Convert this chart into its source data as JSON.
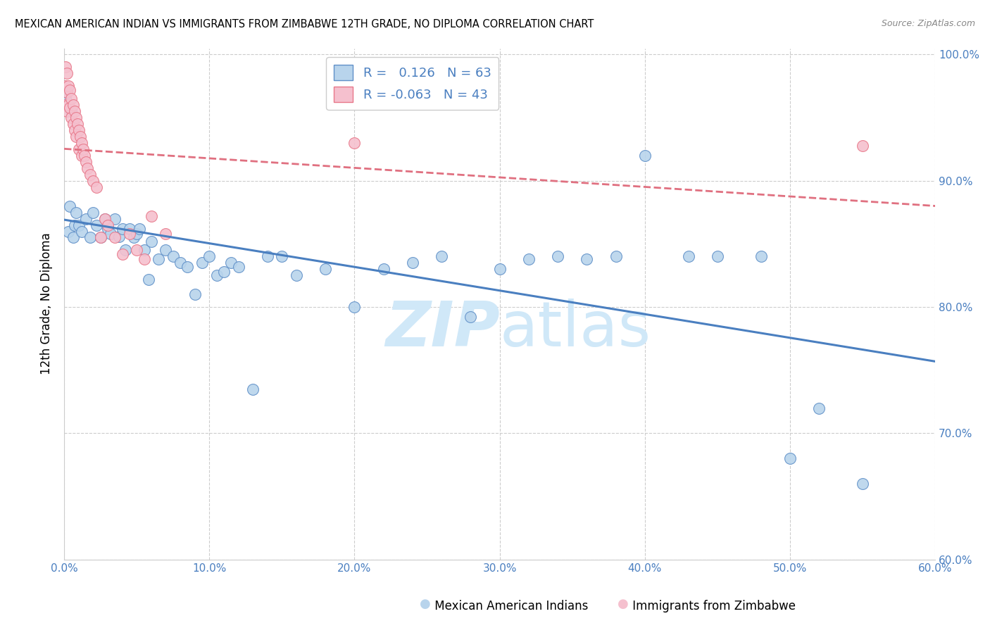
{
  "title": "MEXICAN AMERICAN INDIAN VS IMMIGRANTS FROM ZIMBABWE 12TH GRADE, NO DIPLOMA CORRELATION CHART",
  "source": "Source: ZipAtlas.com",
  "ylabel": "12th Grade, No Diploma",
  "xlim": [
    0.0,
    0.6
  ],
  "ylim": [
    0.6,
    1.005
  ],
  "xticks": [
    0.0,
    0.1,
    0.2,
    0.3,
    0.4,
    0.5,
    0.6
  ],
  "yticks": [
    0.6,
    0.7,
    0.8,
    0.9,
    1.0
  ],
  "xtick_labels": [
    "0.0%",
    "10.0%",
    "20.0%",
    "30.0%",
    "40.0%",
    "50.0%",
    "60.0%"
  ],
  "ytick_labels": [
    "60.0%",
    "70.0%",
    "80.0%",
    "90.0%",
    "100.0%"
  ],
  "legend_blue_r": "0.126",
  "legend_blue_n": "63",
  "legend_pink_r": "-0.063",
  "legend_pink_n": "43",
  "blue_fill": "#b8d4ec",
  "pink_fill": "#f5c0ce",
  "blue_edge": "#6090c8",
  "pink_edge": "#e8788a",
  "blue_line": "#4a7fc0",
  "pink_line": "#e07080",
  "watermark_color": "#d0e8f8",
  "blue_x": [
    0.001,
    0.002,
    0.003,
    0.004,
    0.005,
    0.006,
    0.007,
    0.008,
    0.01,
    0.012,
    0.015,
    0.018,
    0.02,
    0.022,
    0.025,
    0.028,
    0.03,
    0.032,
    0.035,
    0.038,
    0.04,
    0.042,
    0.045,
    0.048,
    0.05,
    0.052,
    0.055,
    0.058,
    0.06,
    0.065,
    0.07,
    0.075,
    0.08,
    0.085,
    0.09,
    0.095,
    0.1,
    0.105,
    0.11,
    0.115,
    0.12,
    0.13,
    0.14,
    0.15,
    0.16,
    0.18,
    0.2,
    0.22,
    0.24,
    0.26,
    0.28,
    0.3,
    0.32,
    0.34,
    0.36,
    0.38,
    0.4,
    0.43,
    0.45,
    0.48,
    0.5,
    0.52,
    0.55
  ],
  "blue_y": [
    0.965,
    0.97,
    0.86,
    0.88,
    0.955,
    0.855,
    0.865,
    0.875,
    0.865,
    0.86,
    0.87,
    0.855,
    0.875,
    0.865,
    0.855,
    0.87,
    0.862,
    0.858,
    0.87,
    0.856,
    0.862,
    0.845,
    0.862,
    0.855,
    0.858,
    0.862,
    0.845,
    0.822,
    0.852,
    0.838,
    0.845,
    0.84,
    0.835,
    0.832,
    0.81,
    0.835,
    0.84,
    0.825,
    0.828,
    0.835,
    0.832,
    0.735,
    0.84,
    0.84,
    0.825,
    0.83,
    0.8,
    0.83,
    0.835,
    0.84,
    0.792,
    0.83,
    0.838,
    0.84,
    0.838,
    0.84,
    0.92,
    0.84,
    0.84,
    0.84,
    0.68,
    0.72,
    0.66
  ],
  "pink_x": [
    0.001,
    0.001,
    0.001,
    0.002,
    0.002,
    0.002,
    0.003,
    0.003,
    0.004,
    0.004,
    0.005,
    0.005,
    0.006,
    0.006,
    0.007,
    0.007,
    0.008,
    0.008,
    0.009,
    0.01,
    0.01,
    0.011,
    0.012,
    0.012,
    0.013,
    0.014,
    0.015,
    0.016,
    0.018,
    0.02,
    0.022,
    0.025,
    0.028,
    0.03,
    0.035,
    0.04,
    0.045,
    0.05,
    0.055,
    0.06,
    0.07,
    0.2,
    0.55
  ],
  "pink_y": [
    0.99,
    0.975,
    0.96,
    0.985,
    0.97,
    0.955,
    0.975,
    0.96,
    0.972,
    0.958,
    0.965,
    0.95,
    0.96,
    0.945,
    0.955,
    0.94,
    0.95,
    0.935,
    0.945,
    0.94,
    0.925,
    0.935,
    0.93,
    0.92,
    0.925,
    0.92,
    0.915,
    0.91,
    0.905,
    0.9,
    0.895,
    0.855,
    0.87,
    0.865,
    0.855,
    0.842,
    0.858,
    0.845,
    0.838,
    0.872,
    0.858,
    0.93,
    0.928
  ]
}
